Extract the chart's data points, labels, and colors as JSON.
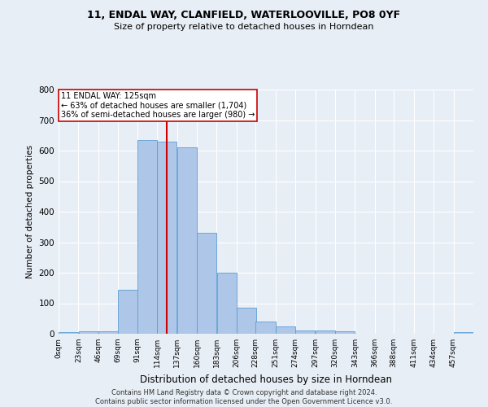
{
  "title1": "11, ENDAL WAY, CLANFIELD, WATERLOOVILLE, PO8 0YF",
  "title2": "Size of property relative to detached houses in Horndean",
  "xlabel": "Distribution of detached houses by size in Horndean",
  "ylabel": "Number of detached properties",
  "footer1": "Contains HM Land Registry data © Crown copyright and database right 2024.",
  "footer2": "Contains public sector information licensed under the Open Government Licence v3.0.",
  "annotation_line1": "11 ENDAL WAY: 125sqm",
  "annotation_line2": "← 63% of detached houses are smaller (1,704)",
  "annotation_line3": "36% of semi-detached houses are larger (980) →",
  "property_size": 125,
  "bin_edges": [
    0,
    23,
    46,
    69,
    91,
    114,
    137,
    160,
    183,
    206,
    228,
    251,
    274,
    297,
    320,
    343,
    366,
    388,
    411,
    434,
    457,
    480
  ],
  "bar_heights": [
    5,
    8,
    8,
    145,
    635,
    630,
    610,
    330,
    200,
    85,
    40,
    25,
    10,
    10,
    8,
    0,
    0,
    0,
    0,
    0,
    5
  ],
  "bar_color": "#aec6e8",
  "bar_edge_color": "#5a9fd4",
  "vline_color": "#cc0000",
  "vline_x": 125,
  "annotation_box_color": "#ffffff",
  "annotation_box_edge": "#cc0000",
  "background_color": "#e8eef6",
  "grid_color": "#ffffff",
  "ylim": [
    0,
    800
  ],
  "yticks": [
    0,
    100,
    200,
    300,
    400,
    500,
    600,
    700,
    800
  ],
  "tick_labels": [
    "0sqm",
    "23sqm",
    "46sqm",
    "69sqm",
    "91sqm",
    "114sqm",
    "137sqm",
    "160sqm",
    "183sqm",
    "206sqm",
    "228sqm",
    "251sqm",
    "274sqm",
    "297sqm",
    "320sqm",
    "343sqm",
    "366sqm",
    "388sqm",
    "411sqm",
    "434sqm",
    "457sqm"
  ]
}
